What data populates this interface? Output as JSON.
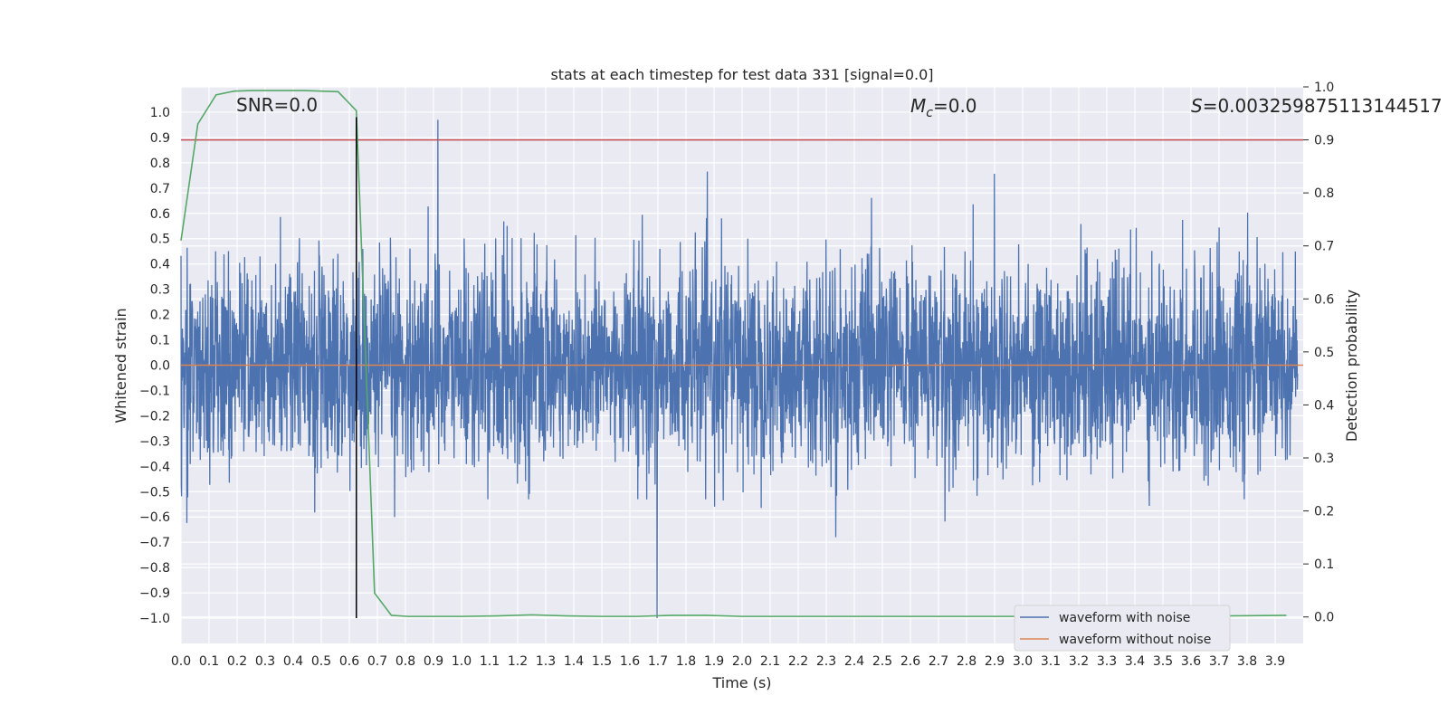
{
  "chart_data": {
    "type": "line",
    "title": "stats at each timestep for test data 331 [signal=0.0]",
    "xlabel": "Time (s)",
    "ylabel_left": "Whitened strain",
    "ylabel_right": "Detection probability",
    "xlim": [
      0.0,
      4.0
    ],
    "ylim_left": [
      -1.1,
      1.1
    ],
    "ylim_right": [
      -0.05,
      1.0
    ],
    "x_ticks": [
      "0.0",
      "0.1",
      "0.2",
      "0.3",
      "0.4",
      "0.5",
      "0.6",
      "0.7",
      "0.8",
      "0.9",
      "1.0",
      "1.1",
      "1.2",
      "1.3",
      "1.4",
      "1.5",
      "1.6",
      "1.7",
      "1.8",
      "1.9",
      "2.0",
      "2.1",
      "2.2",
      "2.3",
      "2.4",
      "2.5",
      "2.6",
      "2.7",
      "2.8",
      "2.9",
      "3.0",
      "3.1",
      "3.2",
      "3.3",
      "3.4",
      "3.5",
      "3.6",
      "3.7",
      "3.8",
      "3.9"
    ],
    "y_ticks_left": [
      "1.0",
      "0.9",
      "0.8",
      "0.7",
      "0.6",
      "0.5",
      "0.4",
      "0.3",
      "0.2",
      "0.1",
      "0.0",
      "−0.1",
      "−0.2",
      "−0.3",
      "−0.4",
      "−0.5",
      "−0.6",
      "−0.7",
      "−0.8",
      "−0.9",
      "−1.0"
    ],
    "y_ticks_right": [
      "1.0",
      "0.9",
      "0.8",
      "0.7",
      "0.6",
      "0.5",
      "0.4",
      "0.3",
      "0.2",
      "0.1",
      "0.0"
    ],
    "grid": true,
    "legend_position": "lower-right",
    "annotations": {
      "snr": "SNR=0.0",
      "mc_symbol": "M",
      "mc_sub": "c",
      "mc_value": "=0.0",
      "s_symbol": "S",
      "s_value": "=0.003259875113144517"
    },
    "series": [
      {
        "name": "waveform with noise",
        "axis": "left",
        "color": "#4c72b0",
        "noise_sigma": 0.2,
        "peak_max": 0.97,
        "peak_min": -1.0
      },
      {
        "name": "waveform without noise",
        "axis": "left",
        "color": "#dd8452",
        "constant": 0.0
      },
      {
        "axis": "right",
        "color": "#55a868",
        "x": [
          0.0,
          0.06,
          0.125,
          0.19,
          0.25,
          0.31,
          0.375,
          0.44,
          0.5,
          0.56,
          0.625,
          0.69,
          0.75,
          0.81,
          0.875,
          0.94,
          1.0,
          1.125,
          1.25,
          1.375,
          1.5,
          1.625,
          1.75,
          1.875,
          2.0,
          2.5,
          3.0,
          3.5,
          3.94
        ],
        "y": [
          0.71,
          0.93,
          0.985,
          0.992,
          0.993,
          0.993,
          0.993,
          0.993,
          0.992,
          0.991,
          0.955,
          0.045,
          0.003,
          0.001,
          0.001,
          0.001,
          0.001,
          0.002,
          0.004,
          0.002,
          0.001,
          0.001,
          0.003,
          0.003,
          0.001,
          0.001,
          0.001,
          0.001,
          0.003
        ]
      }
    ],
    "threshold_line": {
      "axis": "right",
      "value": 0.9,
      "color": "#c44e52"
    },
    "marker_line": {
      "axis": "left",
      "x": 0.625,
      "y_from": -1.0,
      "y_to": 0.98,
      "color": "#000000"
    }
  }
}
